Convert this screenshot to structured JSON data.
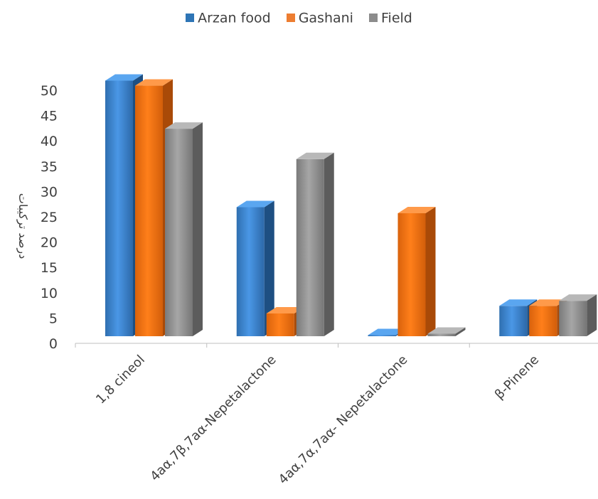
{
  "chart_data": {
    "type": "bar",
    "title": "",
    "xlabel": "",
    "ylabel": "درصد ترکیبات",
    "ylim": [
      0,
      50
    ],
    "yticks": [
      0,
      5,
      10,
      15,
      20,
      25,
      30,
      35,
      40,
      45,
      50
    ],
    "categories": [
      "1,8 cineol",
      "4aα,7β,7aα-Nepetalactone",
      "4aα,7α,7aα- Nepetalactone",
      "β-Pinene"
    ],
    "series": [
      {
        "name": "Arzan food",
        "color": "#2E75B6",
        "values": [
          50.5,
          25.5,
          0,
          6
        ]
      },
      {
        "name": "Gashani",
        "color": "#ED7D31",
        "values": [
          49.5,
          4.5,
          24.3,
          6
        ]
      },
      {
        "name": "Field",
        "color": "#8C8C8C",
        "values": [
          41,
          35,
          0.5,
          7
        ]
      }
    ],
    "legend_position": "top",
    "grid": false,
    "style": "3d-clustered-column"
  }
}
